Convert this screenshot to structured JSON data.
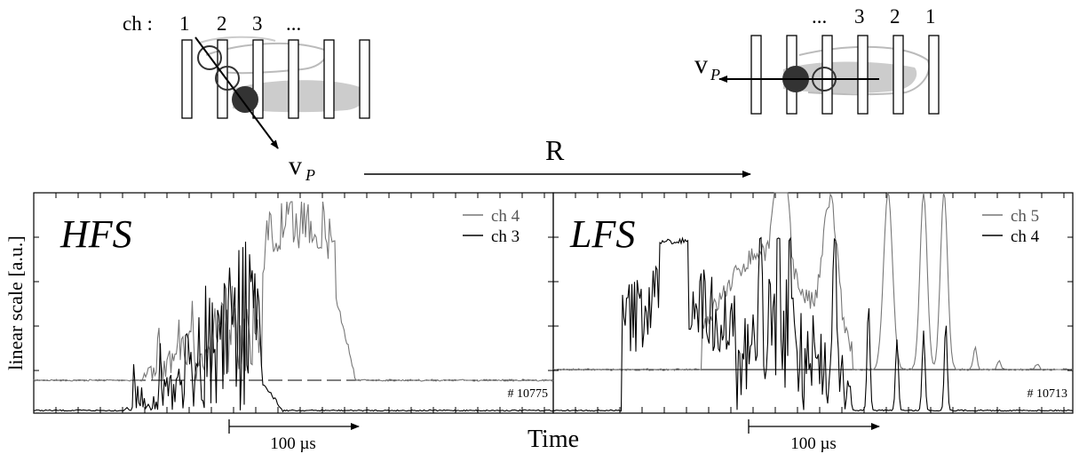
{
  "figure": {
    "time_label": "Time",
    "r_label": "R",
    "ylabel": "linear scale [a.u.]",
    "velocity_label_main": "v",
    "velocity_label_sub": "P",
    "colors": {
      "dark": "#000000",
      "gray": "#777777",
      "cloud": "#cccccc",
      "pellet": "#333333"
    }
  },
  "sketch_left": {
    "prefix": "ch :",
    "channel_labels": [
      "1",
      "2",
      "3",
      "..."
    ]
  },
  "sketch_right": {
    "channel_labels": [
      "...",
      "3",
      "2",
      "1"
    ]
  },
  "chart_data": [
    {
      "type": "line",
      "panel_label": "HFS",
      "shot": "# 10775",
      "scale_bar_label": "100 µs",
      "series": [
        {
          "name": "ch 4",
          "color": "#777777"
        },
        {
          "name": "ch 3",
          "color": "#000000"
        }
      ]
    },
    {
      "type": "line",
      "panel_label": "LFS",
      "shot": "# 10713",
      "scale_bar_label": "100 µs",
      "series": [
        {
          "name": "ch 5",
          "color": "#777777"
        },
        {
          "name": "ch 4",
          "color": "#000000"
        }
      ]
    }
  ]
}
